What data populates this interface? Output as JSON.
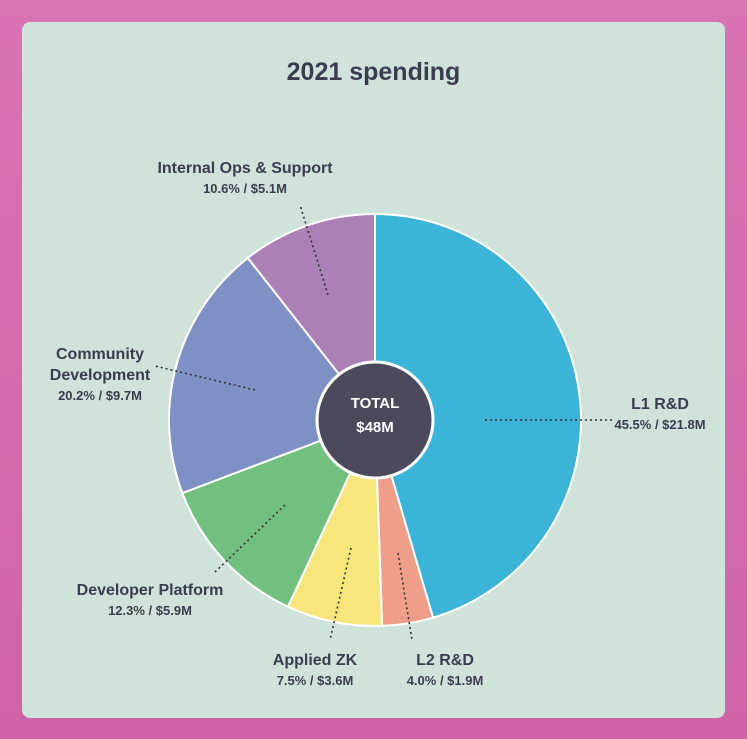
{
  "chart_data": {
    "type": "pie",
    "title": "2021 spending",
    "center_label": "TOTAL",
    "center_value": "$48M",
    "categories": [
      "L1 R&D",
      "L2 R&D",
      "Applied ZK",
      "Developer Platform",
      "Community Development",
      "Internal Ops & Support"
    ],
    "values": [
      45.5,
      4.0,
      7.5,
      12.3,
      20.2,
      10.6
    ],
    "value_labels": [
      "45.5% / $21.8M",
      "4.0% / $1.9M",
      "7.5% / $3.6M",
      "12.3% / $5.9M",
      "20.2% / $9.7M",
      "10.6% / $5.1M"
    ],
    "colors": [
      "#3cb4d8",
      "#ef9e8a",
      "#f6e67c",
      "#72c07f",
      "#7f90c4",
      "#aa80b6"
    ]
  }
}
